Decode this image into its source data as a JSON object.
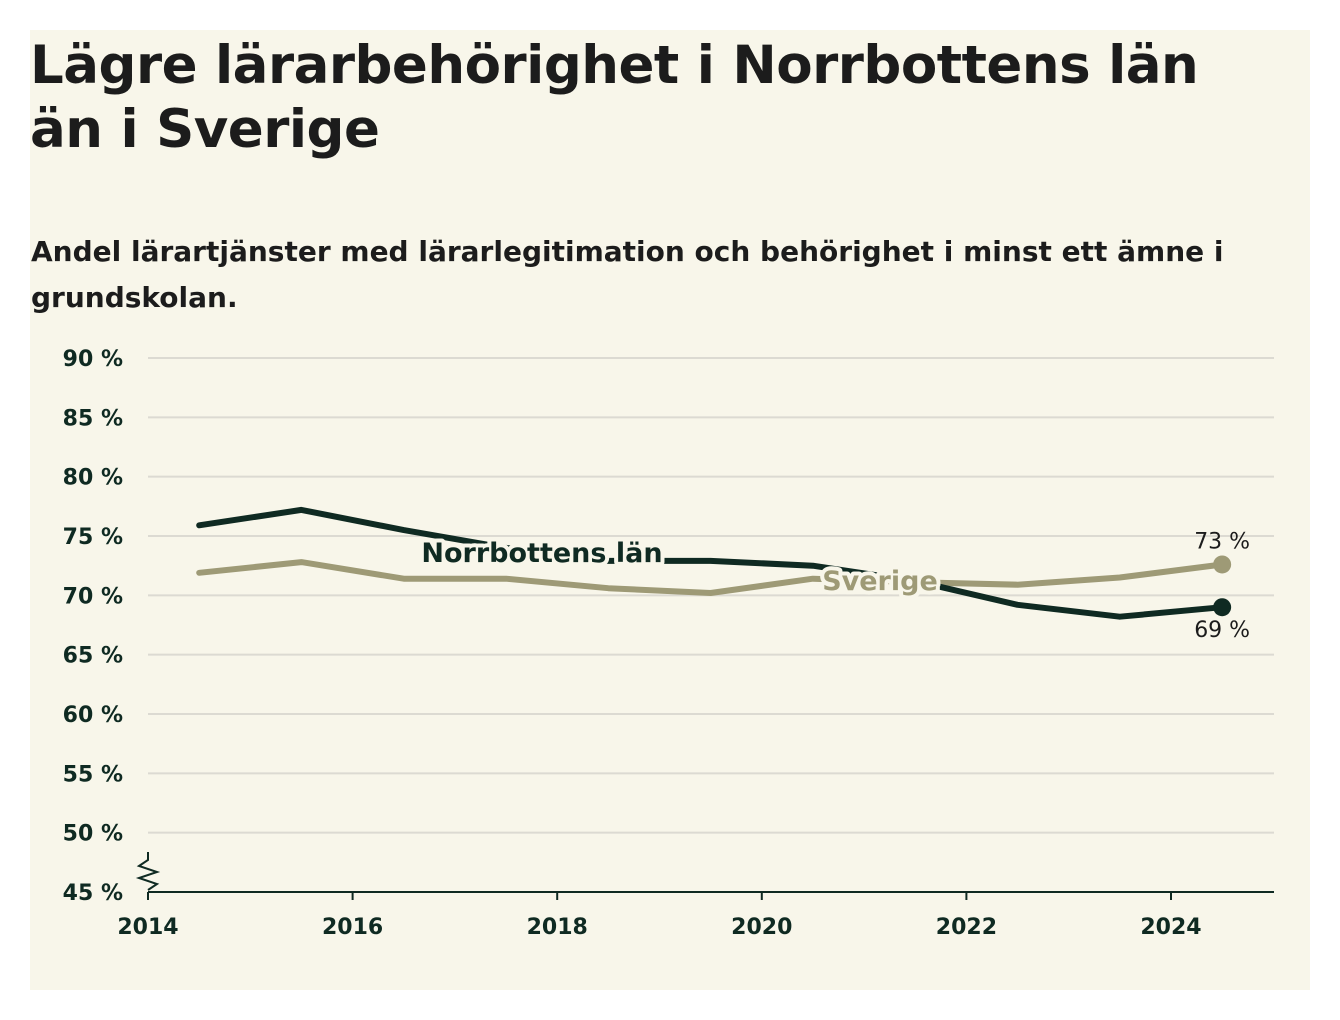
{
  "title": "Lägre lärarbehörighet i Norrbottens län än i Sverige",
  "subtitle": "Andel lärartjänster med lärarlegitimation och behörighet i minst ett ämne i grundskolan.",
  "colors": {
    "background": "#f8f6ea",
    "norrbotten": "#0f2a22",
    "sverige": "#9e9a76",
    "grid": "#dcdad2"
  },
  "chart_data": {
    "type": "line",
    "title": "Lägre lärarbehörighet i Norrbottens län än i Sverige",
    "subtitle": "Andel lärartjänster med lärarlegitimation och behörighet i minst ett ämne i grundskolan.",
    "xlabel": "",
    "ylabel": "",
    "xlim": [
      2014,
      2025
    ],
    "ylim": [
      45,
      90
    ],
    "y_axis_break": true,
    "x_ticks": [
      "2014",
      "2016",
      "2018",
      "2020",
      "2022",
      "2024"
    ],
    "y_ticks": [
      "45 %",
      "50 %",
      "55 %",
      "60 %",
      "65 %",
      "70 %",
      "75 %",
      "80 %",
      "85 %",
      "90 %"
    ],
    "grid": true,
    "x": [
      2014.5,
      2015.5,
      2016.5,
      2017.5,
      2018.5,
      2019.5,
      2020.5,
      2021.5,
      2022.5,
      2023.5,
      2024.5
    ],
    "series": [
      {
        "name": "Norrbottens län",
        "values": [
          75.9,
          77.2,
          75.5,
          74.0,
          72.9,
          72.9,
          72.5,
          71.2,
          69.2,
          68.2,
          69.0
        ],
        "end_label": "69 %"
      },
      {
        "name": "Sverige",
        "values": [
          71.9,
          72.8,
          71.4,
          71.4,
          70.6,
          70.2,
          71.4,
          71.1,
          70.9,
          71.5,
          72.6
        ],
        "end_label": "73 %"
      }
    ]
  }
}
